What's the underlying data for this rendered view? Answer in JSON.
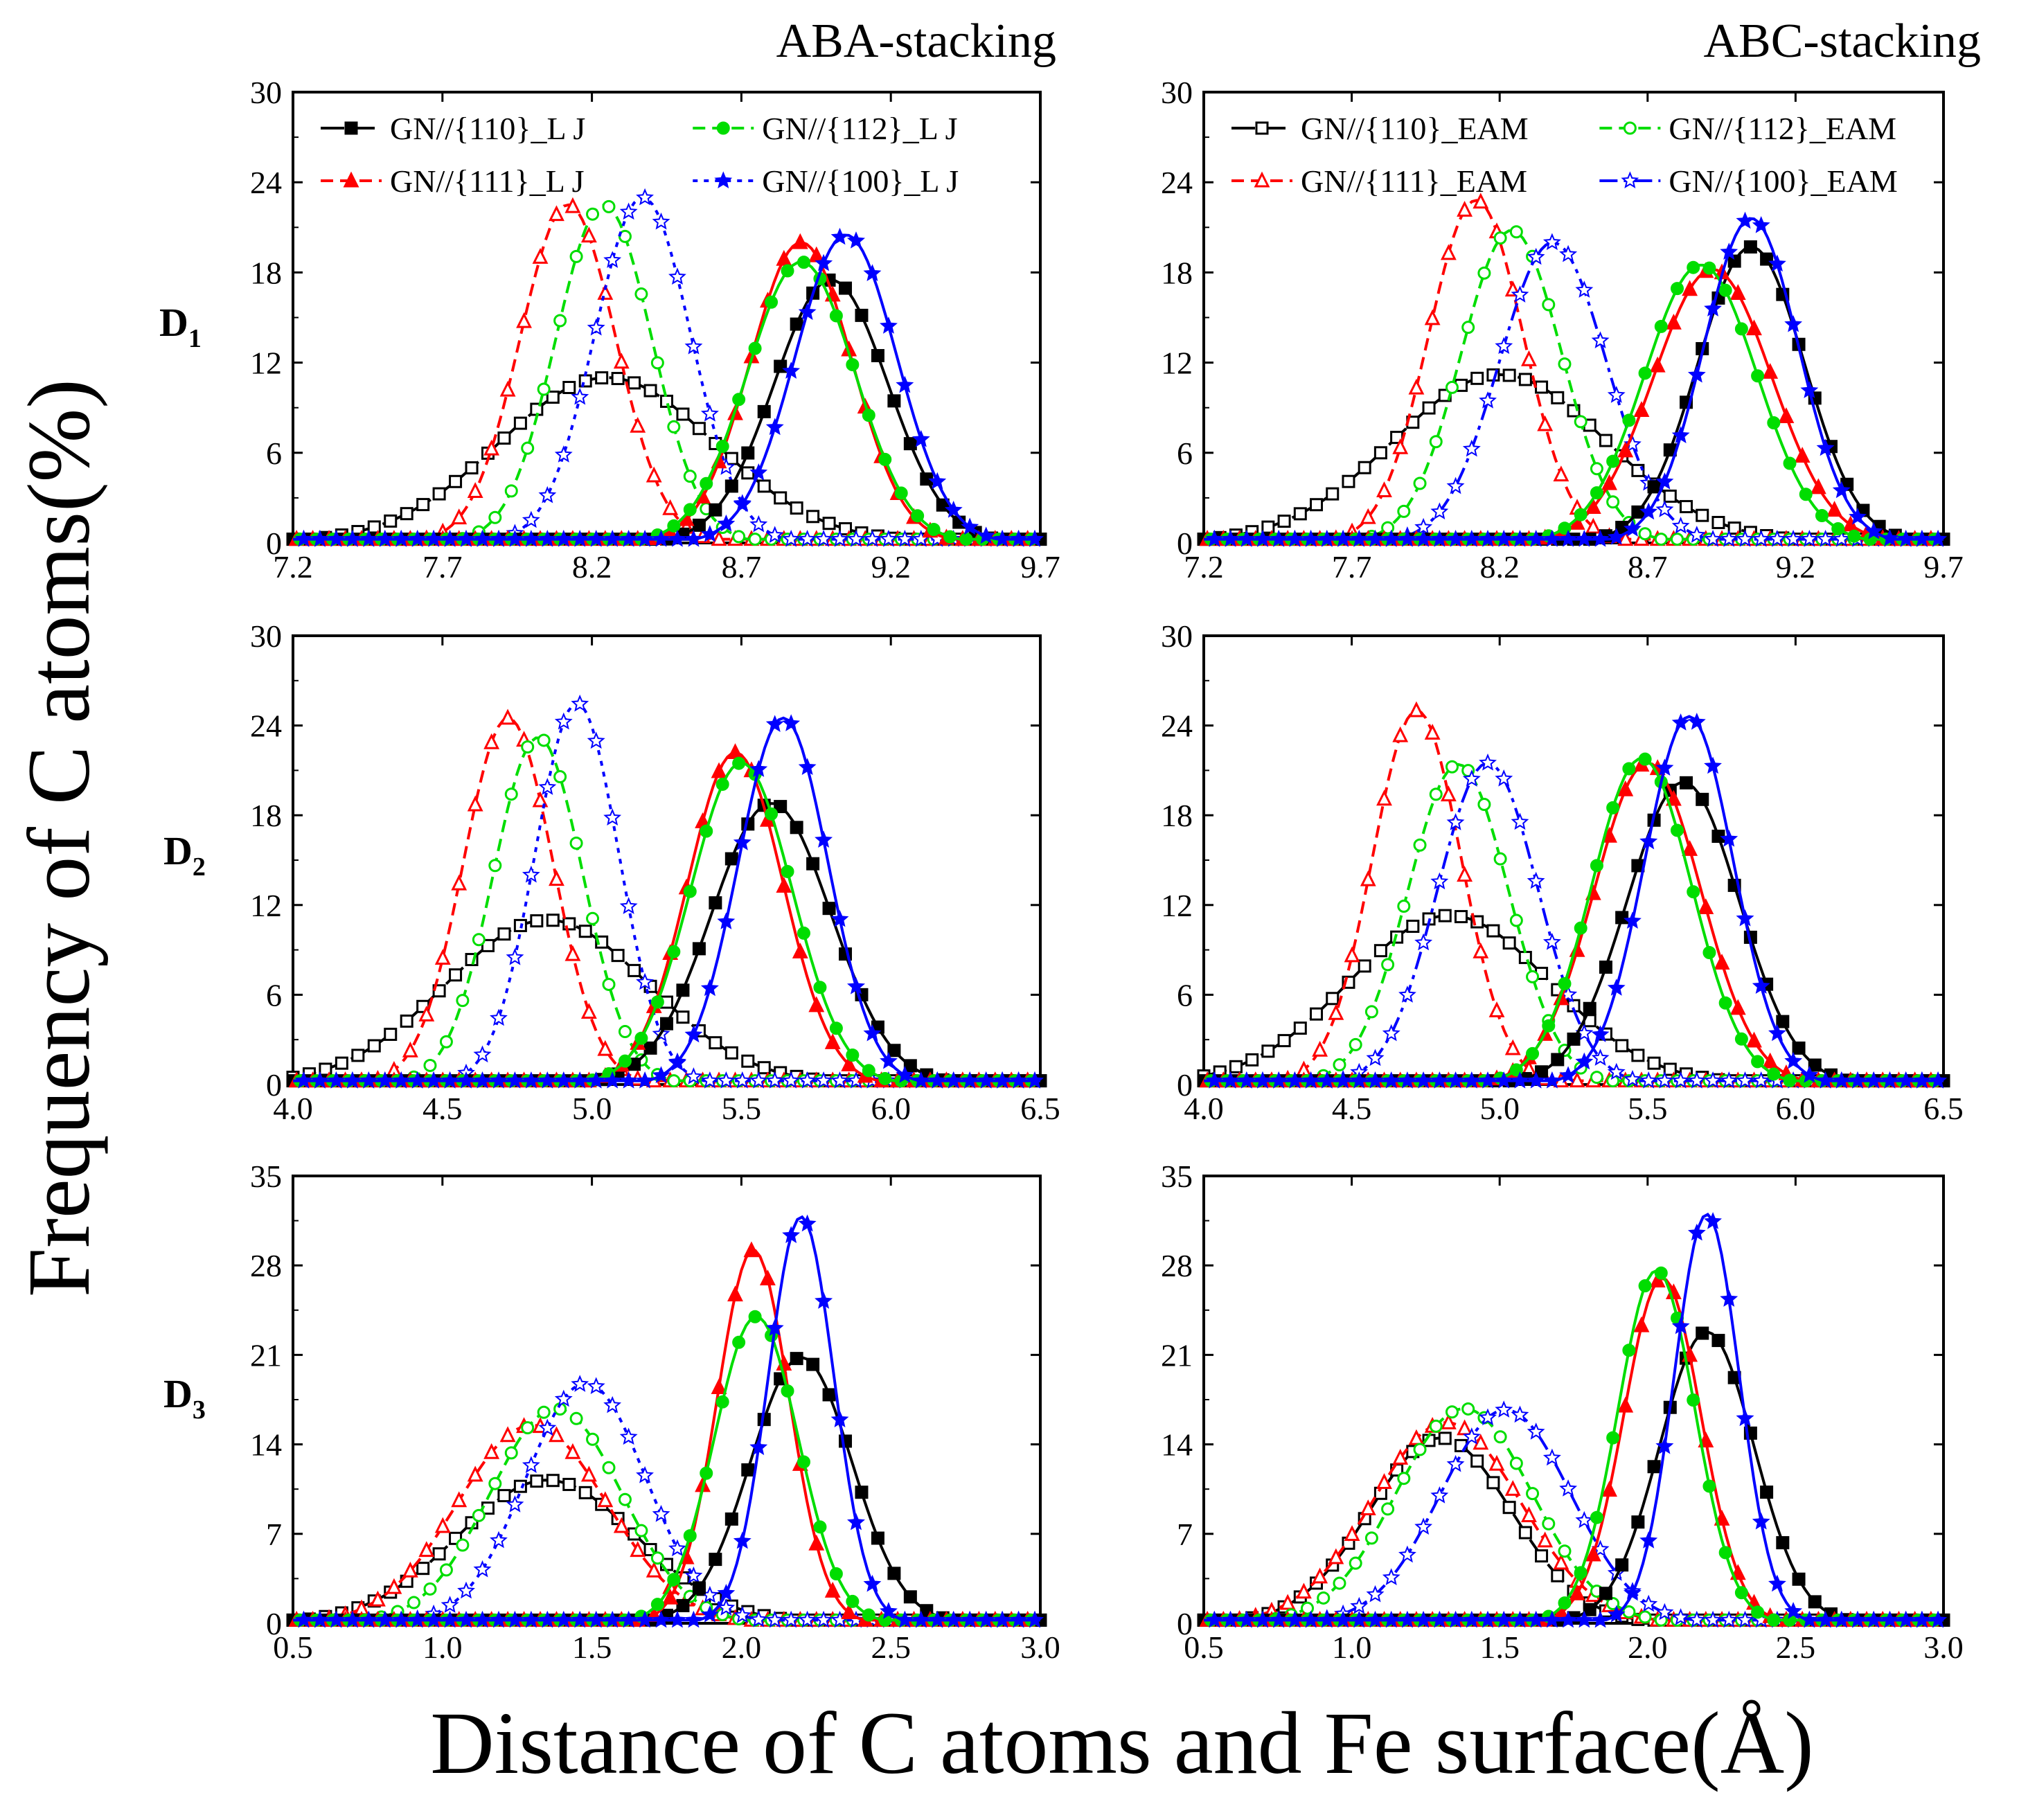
{
  "figure": {
    "ylabel": "Frequency of C atoms(%)",
    "xlabel": "Distance of C atoms and Fe surface(Å)",
    "col_titles": [
      "ABA-stacking",
      "ABC-stacking"
    ],
    "row_labels": [
      {
        "main": "D",
        "sub": "1"
      },
      {
        "main": "D",
        "sub": "2"
      },
      {
        "main": "D",
        "sub": "3"
      }
    ]
  },
  "chart_data": [
    {
      "type": "line",
      "panel": "D1 ABA-stacking",
      "xlim": [
        7.2,
        9.7
      ],
      "ylim": [
        0,
        30
      ],
      "xticks": [
        "7.2",
        "7.7",
        "8.2",
        "8.7",
        "9.2",
        "9.7"
      ],
      "yticks": [
        "0",
        "6",
        "12",
        "18",
        "24",
        "30"
      ],
      "legend": "top",
      "series": [
        {
          "name": "GN//{110}_L J",
          "color": "#000000",
          "dash": "longdash",
          "filled": false,
          "marker": "square",
          "peak_x": 8.25,
          "peak_y": 11,
          "width": 0.36
        },
        {
          "name": "GN//{111}_L J",
          "color": "#ff0000",
          "dash": "dash",
          "filled": false,
          "marker": "triangle",
          "peak_x": 8.12,
          "peak_y": 22.5,
          "width": 0.16
        },
        {
          "name": "GN//{112}_L J",
          "color": "#00dd00",
          "dash": "dash",
          "filled": false,
          "marker": "circle",
          "peak_x": 8.24,
          "peak_y": 22.5,
          "width": 0.16
        },
        {
          "name": "GN//{100}_L J",
          "color": "#0000ff",
          "dash": "dot",
          "filled": false,
          "marker": "star",
          "peak_x": 8.37,
          "peak_y": 23,
          "width": 0.16
        },
        {
          "name": "",
          "color": "#000000",
          "dash": "solid",
          "filled": true,
          "marker": "square",
          "peak_x": 9.0,
          "peak_y": 17.5,
          "width": 0.19
        },
        {
          "name": "",
          "color": "#ff0000",
          "dash": "solid",
          "filled": true,
          "marker": "triangle",
          "peak_x": 8.9,
          "peak_y": 20,
          "width": 0.17
        },
        {
          "name": "",
          "color": "#00dd00",
          "dash": "solid",
          "filled": true,
          "marker": "circle",
          "peak_x": 8.9,
          "peak_y": 18.7,
          "width": 0.18
        },
        {
          "name": "",
          "color": "#0000ff",
          "dash": "solid",
          "filled": true,
          "marker": "star",
          "peak_x": 9.05,
          "peak_y": 20.5,
          "width": 0.17
        }
      ]
    },
    {
      "type": "line",
      "panel": "D1 ABC-stacking",
      "xlim": [
        7.2,
        9.7
      ],
      "ylim": [
        0,
        30
      ],
      "xticks": [
        "7.2",
        "7.7",
        "8.2",
        "8.7",
        "9.2",
        "9.7"
      ],
      "yticks": [
        "0",
        "6",
        "12",
        "18",
        "24",
        "30"
      ],
      "legend": "top",
      "series": [
        {
          "name": "GN//{110}_EAM",
          "color": "#000000",
          "dash": "longdash",
          "filled": false,
          "marker": "square",
          "peak_x": 8.2,
          "peak_y": 11.2,
          "width": 0.36
        },
        {
          "name": "GN//{111}_EAM",
          "color": "#ff0000",
          "dash": "dash",
          "filled": false,
          "marker": "triangle",
          "peak_x": 8.12,
          "peak_y": 22.8,
          "width": 0.16
        },
        {
          "name": "GN//{112}_EAM",
          "color": "#00dd00",
          "dash": "dash",
          "filled": false,
          "marker": "circle",
          "peak_x": 8.24,
          "peak_y": 20.8,
          "width": 0.17
        },
        {
          "name": "GN//{100}_EAM",
          "color": "#0000ff",
          "dash": "dashdot",
          "filled": false,
          "marker": "star",
          "peak_x": 8.38,
          "peak_y": 20,
          "width": 0.18
        },
        {
          "name": "",
          "color": "#000000",
          "dash": "solid",
          "filled": true,
          "marker": "square",
          "peak_x": 9.05,
          "peak_y": 19.7,
          "width": 0.18
        },
        {
          "name": "",
          "color": "#ff0000",
          "dash": "solid",
          "filled": true,
          "marker": "triangle",
          "peak_x": 8.92,
          "peak_y": 18.2,
          "width": 0.2
        },
        {
          "name": "",
          "color": "#00dd00",
          "dash": "solid",
          "filled": true,
          "marker": "circle",
          "peak_x": 8.88,
          "peak_y": 18.5,
          "width": 0.19
        },
        {
          "name": "",
          "color": "#0000ff",
          "dash": "solid",
          "filled": true,
          "marker": "star",
          "peak_x": 9.05,
          "peak_y": 21.6,
          "width": 0.16
        }
      ]
    },
    {
      "type": "line",
      "panel": "D2 ABA-stacking",
      "xlim": [
        4.0,
        6.5
      ],
      "ylim": [
        0,
        30
      ],
      "xticks": [
        "4.0",
        "4.5",
        "5.0",
        "5.5",
        "6.0",
        "6.5"
      ],
      "yticks": [
        "0",
        "6",
        "12",
        "18",
        "24",
        "30"
      ],
      "legend": "none",
      "series": [
        {
          "name": "",
          "color": "#000000",
          "dash": "longdash",
          "filled": false,
          "marker": "square",
          "peak_x": 4.85,
          "peak_y": 11,
          "width": 0.34
        },
        {
          "name": "",
          "color": "#ff0000",
          "dash": "dash",
          "filled": false,
          "marker": "triangle",
          "peak_x": 4.72,
          "peak_y": 24.5,
          "width": 0.15
        },
        {
          "name": "",
          "color": "#00dd00",
          "dash": "dash",
          "filled": false,
          "marker": "circle",
          "peak_x": 4.82,
          "peak_y": 23.2,
          "width": 0.15
        },
        {
          "name": "",
          "color": "#0000ff",
          "dash": "dot",
          "filled": false,
          "marker": "star",
          "peak_x": 4.95,
          "peak_y": 25.5,
          "width": 0.14
        },
        {
          "name": "",
          "color": "#000000",
          "dash": "solid",
          "filled": true,
          "marker": "square",
          "peak_x": 5.6,
          "peak_y": 18.8,
          "width": 0.2
        },
        {
          "name": "",
          "color": "#ff0000",
          "dash": "solid",
          "filled": true,
          "marker": "triangle",
          "peak_x": 5.48,
          "peak_y": 22.2,
          "width": 0.16
        },
        {
          "name": "",
          "color": "#00dd00",
          "dash": "solid",
          "filled": true,
          "marker": "circle",
          "peak_x": 5.5,
          "peak_y": 21.5,
          "width": 0.17
        },
        {
          "name": "",
          "color": "#0000ff",
          "dash": "solid",
          "filled": true,
          "marker": "star",
          "peak_x": 5.64,
          "peak_y": 24.5,
          "width": 0.15
        }
      ]
    },
    {
      "type": "line",
      "panel": "D2 ABC-stacking",
      "xlim": [
        4.0,
        6.5
      ],
      "ylim": [
        0,
        30
      ],
      "xticks": [
        "4.0",
        "4.5",
        "5.0",
        "5.5",
        "6.0",
        "6.5"
      ],
      "yticks": [
        "0",
        "6",
        "12",
        "18",
        "24",
        "30"
      ],
      "legend": "none",
      "series": [
        {
          "name": "",
          "color": "#000000",
          "dash": "longdash",
          "filled": false,
          "marker": "square",
          "peak_x": 4.83,
          "peak_y": 11.3,
          "width": 0.34
        },
        {
          "name": "",
          "color": "#ff0000",
          "dash": "dash",
          "filled": false,
          "marker": "triangle",
          "peak_x": 4.72,
          "peak_y": 25,
          "width": 0.15
        },
        {
          "name": "",
          "color": "#00dd00",
          "dash": "dash",
          "filled": false,
          "marker": "circle",
          "peak_x": 4.86,
          "peak_y": 21.4,
          "width": 0.17
        },
        {
          "name": "",
          "color": "#0000ff",
          "dash": "dashdot",
          "filled": false,
          "marker": "star",
          "peak_x": 4.96,
          "peak_y": 21.5,
          "width": 0.17
        },
        {
          "name": "",
          "color": "#000000",
          "dash": "solid",
          "filled": true,
          "marker": "square",
          "peak_x": 5.62,
          "peak_y": 20.2,
          "width": 0.19
        },
        {
          "name": "",
          "color": "#ff0000",
          "dash": "solid",
          "filled": true,
          "marker": "triangle",
          "peak_x": 5.5,
          "peak_y": 21.5,
          "width": 0.18
        },
        {
          "name": "",
          "color": "#00dd00",
          "dash": "solid",
          "filled": true,
          "marker": "circle",
          "peak_x": 5.48,
          "peak_y": 21.8,
          "width": 0.17
        },
        {
          "name": "",
          "color": "#0000ff",
          "dash": "solid",
          "filled": true,
          "marker": "star",
          "peak_x": 5.64,
          "peak_y": 24.6,
          "width": 0.15
        }
      ]
    },
    {
      "type": "line",
      "panel": "D3 ABA-stacking",
      "xlim": [
        0.5,
        3.0
      ],
      "ylim": [
        0,
        35
      ],
      "xticks": [
        "0.5",
        "1.0",
        "1.5",
        "2.0",
        "2.5",
        "3.0"
      ],
      "yticks": [
        "0",
        "7",
        "14",
        "21",
        "28",
        "35"
      ],
      "legend": "none",
      "series": [
        {
          "name": "",
          "color": "#000000",
          "dash": "longdash",
          "filled": false,
          "marker": "square",
          "peak_x": 1.35,
          "peak_y": 11.2,
          "width": 0.3
        },
        {
          "name": "",
          "color": "#ff0000",
          "dash": "dash",
          "filled": false,
          "marker": "triangle",
          "peak_x": 1.3,
          "peak_y": 15.5,
          "width": 0.25
        },
        {
          "name": "",
          "color": "#00dd00",
          "dash": "dash",
          "filled": false,
          "marker": "circle",
          "peak_x": 1.38,
          "peak_y": 16.8,
          "width": 0.22
        },
        {
          "name": "",
          "color": "#0000ff",
          "dash": "dot",
          "filled": false,
          "marker": "star",
          "peak_x": 1.48,
          "peak_y": 18.8,
          "width": 0.2
        },
        {
          "name": "",
          "color": "#000000",
          "dash": "solid",
          "filled": true,
          "marker": "square",
          "peak_x": 2.2,
          "peak_y": 20.8,
          "width": 0.17
        },
        {
          "name": "",
          "color": "#ff0000",
          "dash": "solid",
          "filled": true,
          "marker": "triangle",
          "peak_x": 2.04,
          "peak_y": 29.2,
          "width": 0.12
        },
        {
          "name": "",
          "color": "#00dd00",
          "dash": "solid",
          "filled": true,
          "marker": "circle",
          "peak_x": 2.05,
          "peak_y": 24,
          "width": 0.14
        },
        {
          "name": "",
          "color": "#0000ff",
          "dash": "solid",
          "filled": true,
          "marker": "star",
          "peak_x": 2.2,
          "peak_y": 31.8,
          "width": 0.11
        }
      ]
    },
    {
      "type": "line",
      "panel": "D3 ABC-stacking",
      "xlim": [
        0.5,
        3.0
      ],
      "ylim": [
        0,
        35
      ],
      "xticks": [
        "0.5",
        "1.0",
        "1.5",
        "2.0",
        "2.5",
        "3.0"
      ],
      "yticks": [
        "0",
        "7",
        "14",
        "21",
        "28",
        "35"
      ],
      "legend": "none",
      "series": [
        {
          "name": "",
          "color": "#000000",
          "dash": "longdash",
          "filled": false,
          "marker": "square",
          "peak_x": 1.3,
          "peak_y": 14.5,
          "width": 0.24
        },
        {
          "name": "",
          "color": "#ff0000",
          "dash": "dash",
          "filled": false,
          "marker": "triangle",
          "peak_x": 1.32,
          "peak_y": 15.7,
          "width": 0.25
        },
        {
          "name": "",
          "color": "#00dd00",
          "dash": "dash",
          "filled": false,
          "marker": "circle",
          "peak_x": 1.38,
          "peak_y": 16.8,
          "width": 0.23
        },
        {
          "name": "",
          "color": "#0000ff",
          "dash": "dashdot",
          "filled": false,
          "marker": "star",
          "peak_x": 1.52,
          "peak_y": 16.7,
          "width": 0.22
        },
        {
          "name": "",
          "color": "#000000",
          "dash": "solid",
          "filled": true,
          "marker": "square",
          "peak_x": 2.2,
          "peak_y": 22.8,
          "width": 0.16
        },
        {
          "name": "",
          "color": "#ff0000",
          "dash": "solid",
          "filled": true,
          "marker": "triangle",
          "peak_x": 2.05,
          "peak_y": 27,
          "width": 0.13
        },
        {
          "name": "",
          "color": "#00dd00",
          "dash": "solid",
          "filled": true,
          "marker": "circle",
          "peak_x": 2.03,
          "peak_y": 27.6,
          "width": 0.13
        },
        {
          "name": "",
          "color": "#0000ff",
          "dash": "solid",
          "filled": true,
          "marker": "star",
          "peak_x": 2.2,
          "peak_y": 32,
          "width": 0.11
        }
      ]
    }
  ]
}
